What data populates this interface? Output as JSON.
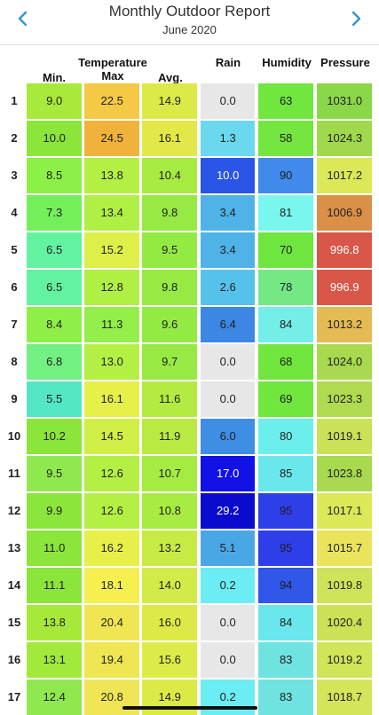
{
  "header": {
    "title": "Monthly Outdoor Report",
    "subtitle": "June 2020",
    "prev_icon": "chevron-left-icon",
    "next_icon": "chevron-right-icon"
  },
  "accent_color": "#2f97d4",
  "columns": {
    "min": "Min.",
    "temperature": "Temperature",
    "max": "Max",
    "avg": "Avg.",
    "rain": "Rain",
    "humidity": "Humidity",
    "pressure": "Pressure"
  },
  "rows": [
    {
      "day": "1",
      "min": "9.0",
      "max": "22.5",
      "avg": "14.9",
      "rain": "0.0",
      "humidity": "63",
      "pressure": "1031.0"
    },
    {
      "day": "2",
      "min": "10.0",
      "max": "24.5",
      "avg": "16.1",
      "rain": "1.3",
      "humidity": "58",
      "pressure": "1024.3"
    },
    {
      "day": "3",
      "min": "8.5",
      "max": "13.8",
      "avg": "10.4",
      "rain": "10.0",
      "humidity": "90",
      "pressure": "1017.2"
    },
    {
      "day": "4",
      "min": "7.3",
      "max": "13.4",
      "avg": "9.8",
      "rain": "3.4",
      "humidity": "81",
      "pressure": "1006.9"
    },
    {
      "day": "5",
      "min": "6.5",
      "max": "15.2",
      "avg": "9.5",
      "rain": "3.4",
      "humidity": "70",
      "pressure": "996.8"
    },
    {
      "day": "6",
      "min": "6.5",
      "max": "12.8",
      "avg": "9.8",
      "rain": "2.6",
      "humidity": "78",
      "pressure": "996.9"
    },
    {
      "day": "7",
      "min": "8.4",
      "max": "11.3",
      "avg": "9.6",
      "rain": "6.4",
      "humidity": "84",
      "pressure": "1013.2"
    },
    {
      "day": "8",
      "min": "6.8",
      "max": "13.0",
      "avg": "9.7",
      "rain": "0.0",
      "humidity": "68",
      "pressure": "1024.0"
    },
    {
      "day": "9",
      "min": "5.5",
      "max": "16.1",
      "avg": "11.6",
      "rain": "0.0",
      "humidity": "69",
      "pressure": "1023.3"
    },
    {
      "day": "10",
      "min": "10.2",
      "max": "14.5",
      "avg": "11.9",
      "rain": "6.0",
      "humidity": "80",
      "pressure": "1019.1"
    },
    {
      "day": "11",
      "min": "9.5",
      "max": "12.6",
      "avg": "10.7",
      "rain": "17.0",
      "humidity": "85",
      "pressure": "1023.8"
    },
    {
      "day": "12",
      "min": "9.9",
      "max": "12.6",
      "avg": "10.8",
      "rain": "29.2",
      "humidity": "95",
      "pressure": "1017.1"
    },
    {
      "day": "13",
      "min": "11.0",
      "max": "16.2",
      "avg": "13.2",
      "rain": "5.1",
      "humidity": "95",
      "pressure": "1015.7"
    },
    {
      "day": "14",
      "min": "11.1",
      "max": "18.1",
      "avg": "14.0",
      "rain": "0.2",
      "humidity": "94",
      "pressure": "1019.8"
    },
    {
      "day": "15",
      "min": "13.8",
      "max": "20.4",
      "avg": "16.0",
      "rain": "0.0",
      "humidity": "84",
      "pressure": "1020.4"
    },
    {
      "day": "16",
      "min": "13.1",
      "max": "19.4",
      "avg": "15.6",
      "rain": "0.0",
      "humidity": "83",
      "pressure": "1019.2"
    },
    {
      "day": "17",
      "min": "12.4",
      "max": "20.8",
      "avg": "14.9",
      "rain": "0.2",
      "humidity": "83",
      "pressure": "1018.7"
    }
  ]
}
